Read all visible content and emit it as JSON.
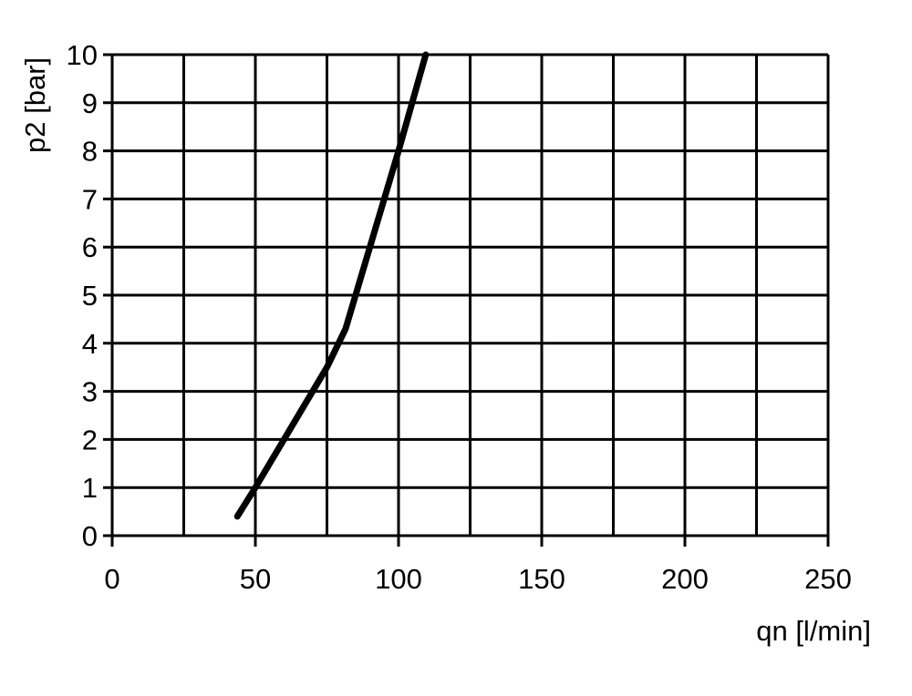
{
  "chart_data": {
    "type": "line",
    "title": "",
    "xlabel": "qn [l/min]",
    "ylabel": "p2 [bar]",
    "xlim": [
      0,
      250
    ],
    "ylim": [
      0,
      10
    ],
    "xticks": [
      0,
      50,
      100,
      150,
      200,
      250
    ],
    "xgrid": [
      0,
      25,
      50,
      75,
      100,
      125,
      150,
      175,
      200,
      225,
      250
    ],
    "yticks": [
      0,
      1,
      2,
      3,
      4,
      5,
      6,
      7,
      8,
      9,
      10
    ],
    "grid": true,
    "line_color": "#000000",
    "series": [
      {
        "x": [
          43.7,
          50,
          75,
          81.5,
          100,
          109.5
        ],
        "y": [
          0.4,
          1.0,
          3.5,
          4.3,
          8.0,
          10.0
        ]
      }
    ]
  }
}
